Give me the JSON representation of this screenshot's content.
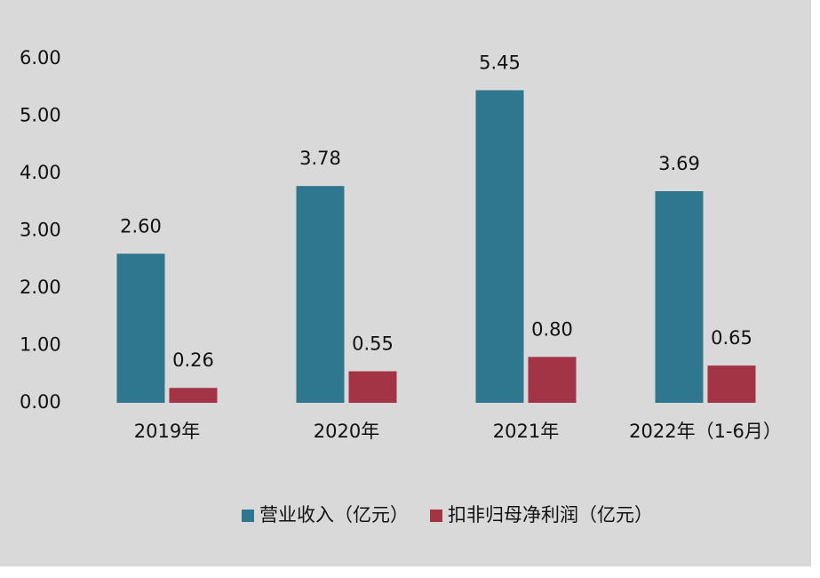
{
  "chart_data": {
    "type": "bar",
    "categories": [
      "2019年",
      "2020年",
      "2021年",
      "2022年（1-6月）"
    ],
    "series": [
      {
        "name": "营业收入（亿元）",
        "color": "#2e778f",
        "values": [
          2.6,
          3.78,
          5.45,
          3.69
        ],
        "value_labels": [
          "2.60",
          "3.78",
          "5.45",
          "3.69"
        ]
      },
      {
        "name": "扣非归母净利润（亿元）",
        "color": "#a33446",
        "values": [
          0.26,
          0.55,
          0.8,
          0.65
        ],
        "value_labels": [
          "0.26",
          "0.55",
          "0.80",
          "0.65"
        ]
      }
    ],
    "ylim": [
      0,
      6
    ],
    "yticks": [
      {
        "value": 0,
        "label": "0.00"
      },
      {
        "value": 1,
        "label": "1.00"
      },
      {
        "value": 2,
        "label": "2.00"
      },
      {
        "value": 3,
        "label": "3.00"
      },
      {
        "value": 4,
        "label": "4.00"
      },
      {
        "value": 5,
        "label": "5.00"
      },
      {
        "value": 6,
        "label": "6.00"
      }
    ],
    "grid": false,
    "legend": "bottom"
  }
}
